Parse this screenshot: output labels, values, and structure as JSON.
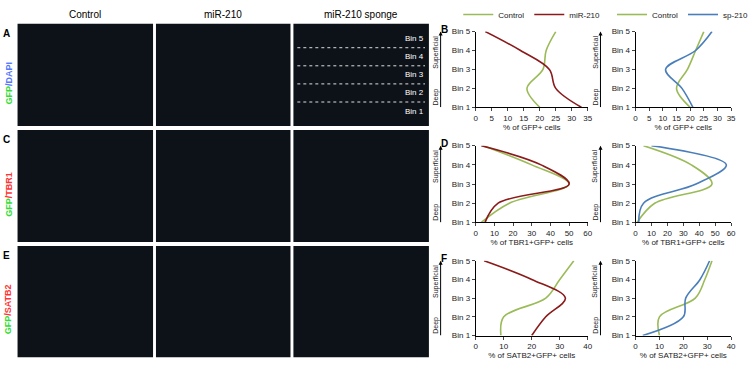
{
  "figure": {
    "column_headers": [
      "Control",
      "miR-210",
      "miR-210 sponge"
    ],
    "image_rows": [
      {
        "letter": "A",
        "label": "GFP/DAPI",
        "colors": [
          "#33dd33",
          "#5577ff"
        ]
      },
      {
        "letter": "C",
        "label": "GFP/TBR1",
        "colors": [
          "#33dd33",
          "#ff3333"
        ]
      },
      {
        "letter": "E",
        "label": "GFP/SATB2",
        "colors": [
          "#33dd33",
          "#ff3333"
        ]
      }
    ],
    "bin_labels": [
      "Bin 5",
      "Bin 4",
      "Bin 3",
      "Bin 2",
      "Bin 1"
    ]
  },
  "chart_data": [
    {
      "type": "line",
      "title": "B",
      "orientation": "horizontal",
      "legend": "top",
      "categories": [
        "Bin 1",
        "Bin 2",
        "Bin 3",
        "Bin 4",
        "Bin 5"
      ],
      "annotations": {
        "top": "Superficial",
        "bottom": "Deep"
      },
      "x_label": "% of GFP+ cells",
      "xlim": [
        0,
        35
      ],
      "xticks": [
        0,
        5,
        10,
        15,
        20,
        25,
        30,
        35
      ],
      "series": [
        {
          "name": "Control",
          "color": "#9bbb59",
          "values": [
            20,
            16,
            21,
            22,
            25
          ]
        },
        {
          "name": "miR-210",
          "color": "#8b1a1a",
          "values": [
            33,
            25,
            23,
            14,
            3
          ]
        }
      ]
    },
    {
      "type": "line",
      "orientation": "horizontal",
      "legend": "top",
      "categories": [
        "Bin 1",
        "Bin 2",
        "Bin 3",
        "Bin 4",
        "Bin 5"
      ],
      "annotations": {
        "top": "Superficial",
        "bottom": "Deep"
      },
      "x_label": "% of GFP+ cells",
      "xlim": [
        0,
        35
      ],
      "xticks": [
        0,
        5,
        10,
        15,
        20,
        25,
        30,
        35
      ],
      "series": [
        {
          "name": "Control",
          "color": "#9bbb59",
          "values": [
            20,
            15,
            19,
            22,
            25
          ]
        },
        {
          "name": "sp-210",
          "color": "#4a7ebb",
          "values": [
            21,
            17,
            11,
            22,
            28
          ]
        }
      ]
    },
    {
      "type": "line",
      "title": "D",
      "orientation": "horizontal",
      "categories": [
        "Bin 1",
        "Bin 2",
        "Bin 3",
        "Bin 4",
        "Bin 5"
      ],
      "annotations": {
        "top": "Superficial",
        "bottom": "Deep"
      },
      "x_label": "% of TBR1+GFP+ cells",
      "xlim": [
        0,
        60
      ],
      "xticks": [
        0,
        10,
        20,
        30,
        40,
        50,
        60
      ],
      "series": [
        {
          "name": "Control",
          "color": "#9bbb59",
          "values": [
            3,
            18,
            50,
            30,
            4
          ]
        },
        {
          "name": "miR-210",
          "color": "#8b1a1a",
          "values": [
            5,
            12,
            50,
            35,
            3
          ]
        }
      ]
    },
    {
      "type": "line",
      "orientation": "horizontal",
      "categories": [
        "Bin 1",
        "Bin 2",
        "Bin 3",
        "Bin 4",
        "Bin 5"
      ],
      "annotations": {
        "top": "Superficial",
        "bottom": "Deep"
      },
      "x_label": "% of TBR1+GFP+ cells",
      "xlim": [
        0,
        60
      ],
      "xticks": [
        0,
        10,
        20,
        30,
        40,
        50,
        60
      ],
      "series": [
        {
          "name": "Control",
          "color": "#9bbb59",
          "values": [
            1,
            12,
            48,
            35,
            5
          ]
        },
        {
          "name": "sp-210",
          "color": "#4a7ebb",
          "values": [
            2,
            5,
            38,
            57,
            10
          ]
        }
      ]
    },
    {
      "type": "line",
      "title": "F",
      "orientation": "horizontal",
      "categories": [
        "Bin 1",
        "Bin 2",
        "Bin 3",
        "Bin 4",
        "Bin 5"
      ],
      "annotations": {
        "top": "Superficial",
        "bottom": "Deep"
      },
      "x_label": "% of SATB2+GFP+ cells",
      "xlim": [
        0,
        40
      ],
      "xticks": [
        0,
        10,
        20,
        30,
        40
      ],
      "series": [
        {
          "name": "Control",
          "color": "#9bbb59",
          "values": [
            9,
            10,
            25,
            30,
            35
          ]
        },
        {
          "name": "miR-210",
          "color": "#8b1a1a",
          "values": [
            20,
            25,
            32,
            20,
            3
          ]
        }
      ]
    },
    {
      "type": "line",
      "orientation": "horizontal",
      "categories": [
        "Bin 1",
        "Bin 2",
        "Bin 3",
        "Bin 4",
        "Bin 5"
      ],
      "annotations": {
        "top": "Superficial",
        "bottom": "Deep"
      },
      "x_label": "% of SATB2+GFP+ cells",
      "xlim": [
        0,
        40
      ],
      "xticks": [
        0,
        10,
        20,
        30,
        40
      ],
      "series": [
        {
          "name": "Control",
          "color": "#9bbb59",
          "values": [
            10,
            10,
            25,
            29,
            32
          ]
        },
        {
          "name": "sp-210",
          "color": "#4a7ebb",
          "values": [
            3,
            20,
            21,
            27,
            31
          ]
        }
      ]
    }
  ]
}
